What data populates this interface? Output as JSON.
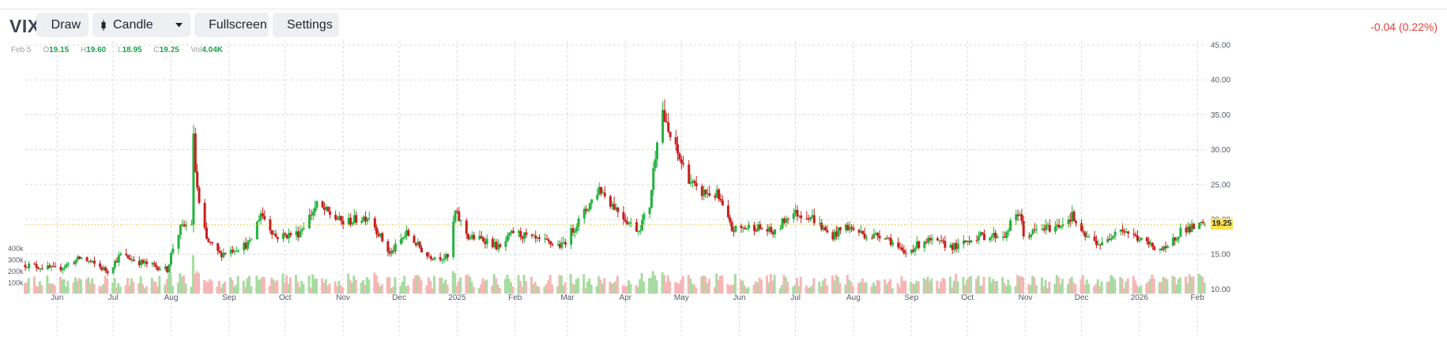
{
  "ticker": "VIX",
  "toolbar": {
    "draw_label": "Draw",
    "chart_type_label": "Candle",
    "fullscreen_label": "Fullscreen",
    "settings_label": "Settings"
  },
  "change_text": "-0.04 (0.22%)",
  "ohlc": {
    "date": "Feb 5",
    "o_label": "O",
    "o": "19.15",
    "h_label": "H",
    "h": "19.60",
    "l_label": "L",
    "l": "18.95",
    "c_label": "C",
    "c": "19.25",
    "vol_label": "Vol",
    "vol": "4.04K"
  },
  "last_price": "19.25",
  "colors": {
    "up": "#22b33e",
    "down": "#c81e1e",
    "vol_up": "#a6dca0",
    "vol_down": "#f6b6b6",
    "accent": "#ef3b3b",
    "price_tag": "#ffe14d"
  },
  "chart_data": {
    "type": "candlestick",
    "y_ticks": [
      10,
      15,
      20,
      25,
      30,
      35,
      40,
      45
    ],
    "y_tick_labels": [
      "10.00",
      "15.00",
      "20.00",
      "25.00",
      "30.00",
      "35.00",
      "40.00",
      "45.00"
    ],
    "ylim": [
      10,
      45
    ],
    "volume_ticks": [
      "100k",
      "200k",
      "300k",
      "400k"
    ],
    "volume_ylim": [
      0,
      400000
    ],
    "x_labels": [
      "Jun",
      "Jul",
      "Aug",
      "Sep",
      "Oct",
      "Nov",
      "Dec",
      "2025",
      "Feb",
      "Mar",
      "Apr",
      "May",
      "Jun",
      "Jul",
      "Aug",
      "Sep",
      "Oct",
      "Nov",
      "Dec",
      "2026",
      "Feb"
    ],
    "grid": true,
    "anchors": [
      {
        "date": "May 15 2024",
        "close": 13.5
      },
      {
        "date": "Jun 1 2024",
        "close": 12.8
      },
      {
        "date": "Jun 14 2024",
        "close": 14.5
      },
      {
        "date": "Jun 28 2024",
        "close": 12.6
      },
      {
        "date": "Jul 5 2024",
        "close": 14.9
      },
      {
        "date": "Jul 16 2024",
        "close": 13.8
      },
      {
        "date": "Jul 30 2024",
        "close": 12.8
      },
      {
        "date": "Aug 2 2024",
        "close": 16.0
      },
      {
        "date": "Aug 6 2024",
        "close": 18.7
      },
      {
        "date": "Aug 12 2024",
        "close": 19.5
      },
      {
        "date": "Aug 13 2024",
        "close": 31.5
      },
      {
        "date": "Aug 14 2024",
        "close": 27.0
      },
      {
        "date": "Aug 16 2024",
        "close": 22.0
      },
      {
        "date": "Aug 20 2024",
        "close": 17.0
      },
      {
        "date": "Aug 27 2024",
        "close": 15.0
      },
      {
        "date": "Sep 6 2024",
        "close": 16.0
      },
      {
        "date": "Sep 12 2024",
        "close": 16.5
      },
      {
        "date": "Sep 18 2024",
        "close": 21.0
      },
      {
        "date": "Sep 26 2024",
        "close": 17.5
      },
      {
        "date": "Oct 8 2024",
        "close": 18.0
      },
      {
        "date": "Oct 18 2024",
        "close": 22.0
      },
      {
        "date": "Nov 1 2024",
        "close": 19.5
      },
      {
        "date": "Nov 15 2024",
        "close": 20.5
      },
      {
        "date": "Nov 26 2024",
        "close": 15.0
      },
      {
        "date": "Dec 5 2024",
        "close": 18.0
      },
      {
        "date": "Dec 16 2024",
        "close": 14.8
      },
      {
        "date": "Dec 27 2024",
        "close": 14.5
      },
      {
        "date": "Dec 31 2024",
        "close": 21.0
      },
      {
        "date": "Jan 7 2025",
        "close": 17.5
      },
      {
        "date": "Jan 17 2025",
        "close": 17.0
      },
      {
        "date": "Jan 24 2025",
        "close": 15.8
      },
      {
        "date": "Jan 31 2025",
        "close": 18.2
      },
      {
        "date": "Feb 12 2025",
        "close": 17.0
      },
      {
        "date": "Feb 26 2025",
        "close": 16.2
      },
      {
        "date": "Mar 9 2025",
        "close": 20.5
      },
      {
        "date": "Mar 18 2025",
        "close": 24.5
      },
      {
        "date": "Mar 24 2025",
        "close": 22.5
      },
      {
        "date": "Apr 3 2025",
        "close": 19.5
      },
      {
        "date": "Apr 8 2025",
        "close": 18.5
      },
      {
        "date": "Apr 14 2025",
        "close": 22.0
      },
      {
        "date": "Apr 20 2025",
        "close": 37.0
      },
      {
        "date": "Apr 23 2025",
        "close": 33.0
      },
      {
        "date": "Apr 27 2025",
        "close": 30.5
      },
      {
        "date": "May 2 2025",
        "close": 27.5
      },
      {
        "date": "May 9 2025",
        "close": 24.0
      },
      {
        "date": "May 20 2025",
        "close": 23.5
      },
      {
        "date": "May 28 2025",
        "close": 18.5
      },
      {
        "date": "Jun 9 2025",
        "close": 19.0
      },
      {
        "date": "Jun 20 2025",
        "close": 18.0
      },
      {
        "date": "Jun 28 2025",
        "close": 21.0
      },
      {
        "date": "Jul 9 2025",
        "close": 20.5
      },
      {
        "date": "Jul 20 2025",
        "close": 17.5
      },
      {
        "date": "Jul 28 2025",
        "close": 19.0
      },
      {
        "date": "Aug 10 2025",
        "close": 17.5
      },
      {
        "date": "Aug 17 2025",
        "close": 18.0
      },
      {
        "date": "Aug 28 2025",
        "close": 15.0
      },
      {
        "date": "Sep 8 2025",
        "close": 17.0
      },
      {
        "date": "Sep 26 2025",
        "close": 16.0
      },
      {
        "date": "Oct 4 2025",
        "close": 17.5
      },
      {
        "date": "Oct 22 2025",
        "close": 17.8
      },
      {
        "date": "Oct 25 2025",
        "close": 20.0
      },
      {
        "date": "Oct 29 2025",
        "close": 21.0
      },
      {
        "date": "Oct 31 2025",
        "close": 17.5
      },
      {
        "date": "Nov 8 2025",
        "close": 18.5
      },
      {
        "date": "Nov 18 2025",
        "close": 19.0
      },
      {
        "date": "Nov 26 2025",
        "close": 20.5
      },
      {
        "date": "Dec 1 2025",
        "close": 17.8
      },
      {
        "date": "Dec 13 2025",
        "close": 16.2
      },
      {
        "date": "Dec 20 2025",
        "close": 19.0
      },
      {
        "date": "Jan 5 2026",
        "close": 16.5
      },
      {
        "date": "Jan 15 2026",
        "close": 15.5
      },
      {
        "date": "Jan 23 2026",
        "close": 18.5
      },
      {
        "date": "Jan 30 2026",
        "close": 18.8
      },
      {
        "date": "Feb 5 2026",
        "close": 19.25
      }
    ]
  }
}
